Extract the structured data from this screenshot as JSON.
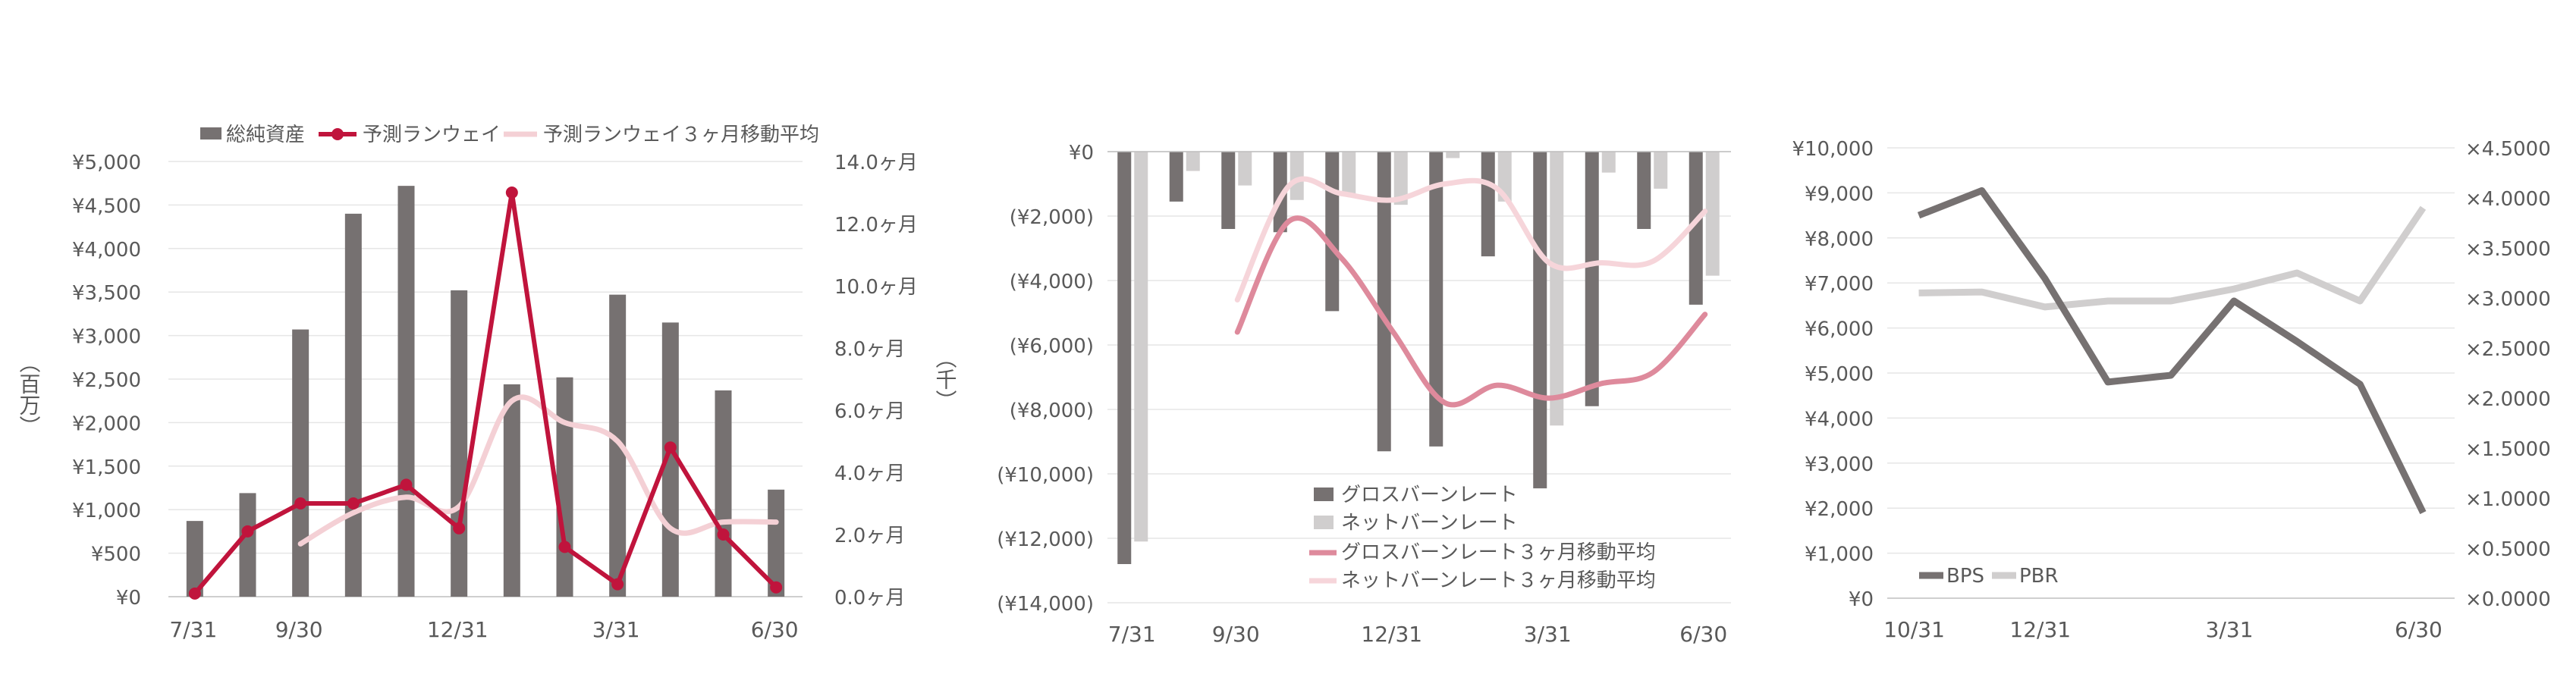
{
  "chart_data": [
    {
      "type": "bar+line",
      "title": "",
      "y_left_unit_label": "（百万）",
      "y_left_ticks": [
        "¥0",
        "¥500",
        "¥1,000",
        "¥1,500",
        "¥2,000",
        "¥2,500",
        "¥3,000",
        "¥3,500",
        "¥4,000",
        "¥4,500",
        "¥5,000"
      ],
      "y_left_range": [
        0,
        5000
      ],
      "y_right_ticks": [
        "0.0ヶ月",
        "2.0ヶ月",
        "4.0ヶ月",
        "6.0ヶ月",
        "8.0ヶ月",
        "10.0ヶ月",
        "12.0ヶ月",
        "14.0ヶ月"
      ],
      "y_right_range": [
        0,
        14
      ],
      "x_tick_labels": [
        {
          "index": 0,
          "label": "7/31"
        },
        {
          "index": 2,
          "label": "9/30"
        },
        {
          "index": 5,
          "label": "12/31"
        },
        {
          "index": 8,
          "label": "3/31"
        },
        {
          "index": 11,
          "label": "6/30"
        }
      ],
      "n_points": 12,
      "legend": {
        "position": "top"
      },
      "series": [
        {
          "name": "総純資産",
          "kind": "bar",
          "axis": "left",
          "color": "#767171",
          "values": [
            870,
            1190,
            3070,
            4400,
            4720,
            3520,
            2440,
            2520,
            3470,
            3150,
            2370,
            1230
          ]
        },
        {
          "name": "予測ランウェイ",
          "kind": "line",
          "axis": "right",
          "color": "#C0143C",
          "markers": true,
          "values": [
            0.1,
            2.1,
            3.0,
            3.0,
            3.6,
            2.2,
            13.0,
            1.6,
            0.4,
            4.8,
            2.0,
            0.3
          ]
        },
        {
          "name": "予測ランウェイ３ヶ月移動平均",
          "kind": "line",
          "axis": "right",
          "color": "#F4D0D5",
          "smooth": true,
          "values": [
            null,
            null,
            1.7,
            2.7,
            3.2,
            2.9,
            6.3,
            5.6,
            5.0,
            2.2,
            2.4,
            2.4
          ]
        }
      ]
    },
    {
      "type": "bar+line",
      "title": "",
      "y_unit_label": "（千）",
      "y_ticks": [
        "(¥14,000)",
        "(¥12,000)",
        "(¥10,000)",
        "(¥8,000)",
        "(¥6,000)",
        "(¥4,000)",
        "(¥2,000)",
        "¥0"
      ],
      "y_range": [
        -14000,
        0
      ],
      "x_tick_labels": [
        {
          "index": 0,
          "label": "7/31"
        },
        {
          "index": 2,
          "label": "9/30"
        },
        {
          "index": 5,
          "label": "12/31"
        },
        {
          "index": 8,
          "label": "3/31"
        },
        {
          "index": 11,
          "label": "6/30"
        }
      ],
      "n_points": 12,
      "legend": {
        "position": "bottom-center"
      },
      "series": [
        {
          "name": "グロスバーンレート",
          "kind": "bar",
          "color": "#767171",
          "values": [
            -12800,
            -1550,
            -2400,
            -2500,
            -4950,
            -9300,
            -9150,
            -3250,
            -10450,
            -7900,
            -2400,
            -4750
          ]
        },
        {
          "name": "ネットバーンレート",
          "kind": "bar",
          "color": "#D0CECE",
          "values": [
            -12100,
            -600,
            -1050,
            -1500,
            -1300,
            -1650,
            -200,
            -1550,
            -8500,
            -650,
            -1150,
            -3850
          ]
        },
        {
          "name": "グロスバーンレート３ヶ月移動平均",
          "kind": "line",
          "color": "#DE8A9C",
          "smooth": true,
          "values": [
            null,
            null,
            -5600,
            -2150,
            -3300,
            -5600,
            -7800,
            -7250,
            -7650,
            -7200,
            -6850,
            -5050
          ]
        },
        {
          "name": "ネットバーンレート３ヶ月移動平均",
          "kind": "line",
          "color": "#F6D5DA",
          "smooth": true,
          "values": [
            null,
            null,
            -4600,
            -1050,
            -1300,
            -1500,
            -1000,
            -1150,
            -3450,
            -3450,
            -3400,
            -1850
          ]
        }
      ]
    },
    {
      "type": "line",
      "title": "",
      "y_left_ticks": [
        "¥0",
        "¥1,000",
        "¥2,000",
        "¥3,000",
        "¥4,000",
        "¥5,000",
        "¥6,000",
        "¥7,000",
        "¥8,000",
        "¥9,000",
        "¥10,000"
      ],
      "y_left_range": [
        0,
        10000
      ],
      "y_right_ticks": [
        "×0.0000",
        "×0.5000",
        "×1.0000",
        "×1.5000",
        "×2.0000",
        "×2.5000",
        "×3.0000",
        "×3.5000",
        "×4.0000",
        "×4.5000"
      ],
      "y_right_range": [
        0,
        4.5
      ],
      "x_tick_labels": [
        {
          "index": 0,
          "label": "10/31"
        },
        {
          "index": 2,
          "label": "12/31"
        },
        {
          "index": 5,
          "label": "3/31"
        },
        {
          "index": 8,
          "label": "6/30"
        }
      ],
      "n_points": 9,
      "legend": {
        "position": "bottom-left"
      },
      "series": [
        {
          "name": "BPS",
          "axis": "left",
          "color": "#767171",
          "values": [
            8500,
            9050,
            7100,
            4800,
            4950,
            6600,
            5700,
            4750,
            1900
          ]
        },
        {
          "name": "PBR",
          "axis": "right",
          "color": "#D0CECE",
          "values": [
            3.05,
            3.06,
            2.91,
            2.97,
            2.97,
            3.09,
            3.25,
            2.97,
            3.9
          ]
        }
      ]
    }
  ]
}
